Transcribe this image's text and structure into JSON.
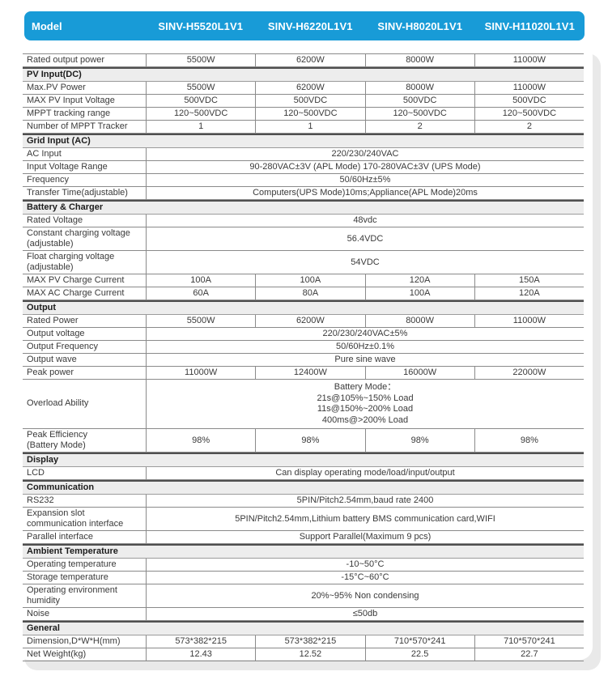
{
  "colors": {
    "accent_blue": "#189bd7",
    "section_bg": "#ededed",
    "border_gray": "#8a8a8a",
    "section_border_dark": "#4f4f4f",
    "shadow_gray": "#e9e9e9",
    "text_dark": "#3a3a3a"
  },
  "header": {
    "model_label": "Model",
    "models": [
      "SINV-H5520L1V1",
      "SINV-H6220L1V1",
      "SINV-H8020L1V1",
      "SINV-H11020L1V1"
    ]
  },
  "table": {
    "rows": [
      {
        "type": "cells",
        "label": "Rated output power",
        "values": [
          "5500W",
          "6200W",
          "8000W",
          "11000W"
        ]
      },
      {
        "type": "section",
        "label": "PV Input(DC)"
      },
      {
        "type": "cells",
        "label": "Max.PV Power",
        "values": [
          "5500W",
          "6200W",
          "8000W",
          "11000W"
        ]
      },
      {
        "type": "cells",
        "label": "MAX PV Input Voltage",
        "values": [
          "500VDC",
          "500VDC",
          "500VDC",
          "500VDC"
        ]
      },
      {
        "type": "cells",
        "label": "MPPT tracking range",
        "values": [
          "120~500VDC",
          "120~500VDC",
          "120~500VDC",
          "120~500VDC"
        ]
      },
      {
        "type": "cells",
        "label": "Number of MPPT Tracker",
        "values": [
          "1",
          "1",
          "2",
          "2"
        ]
      },
      {
        "type": "section",
        "label": "Grid Input (AC)"
      },
      {
        "type": "merged",
        "label": "AC Input",
        "value": "220/230/240VAC"
      },
      {
        "type": "merged",
        "label": "Input Voltage Range",
        "value": "90-280VAC±3V (APL Mode) 170-280VAC±3V (UPS Mode)"
      },
      {
        "type": "merged",
        "label": "Frequency",
        "value": "50/60Hz±5%"
      },
      {
        "type": "merged",
        "label": "Transfer Time(adjustable)",
        "value": "Computers(UPS Mode)10ms;Appliance(APL Mode)20ms"
      },
      {
        "type": "section",
        "label": "Battery & Charger"
      },
      {
        "type": "merged",
        "label": "Rated Voltage",
        "value": "48vdc"
      },
      {
        "type": "merged",
        "label": "Constant charging voltage\n(adjustable)",
        "value": "56.4VDC"
      },
      {
        "type": "merged",
        "label": "Float charging voltage\n(adjustable)",
        "value": "54VDC"
      },
      {
        "type": "cells",
        "label": "MAX PV Charge Current",
        "values": [
          "100A",
          "100A",
          "120A",
          "150A"
        ]
      },
      {
        "type": "cells",
        "label": "MAX AC Charge Current",
        "values": [
          "60A",
          "80A",
          "100A",
          "120A"
        ]
      },
      {
        "type": "section",
        "label": "Output"
      },
      {
        "type": "cells",
        "label": "Rated Power",
        "values": [
          "5500W",
          "6200W",
          "8000W",
          "11000W"
        ]
      },
      {
        "type": "merged",
        "label": "Output voltage",
        "value": "220/230/240VAC±5%"
      },
      {
        "type": "merged",
        "label": "Output Frequency",
        "value": "50/60Hz±0.1%"
      },
      {
        "type": "merged",
        "label": "Output wave",
        "value": "Pure sine wave"
      },
      {
        "type": "cells",
        "label": "Peak power",
        "values": [
          "11000W",
          "12400W",
          "16000W",
          "22000W"
        ]
      },
      {
        "type": "merged",
        "label": "Overload Ability",
        "value": "Battery Mode：\n21s@105%~150% Load\n11s@150%~200% Load\n400ms@>200% Load"
      },
      {
        "type": "cells",
        "label": "Peak Efficiency\n(Battery Mode)",
        "values": [
          "98%",
          "98%",
          "98%",
          "98%"
        ]
      },
      {
        "type": "section",
        "label": "Display"
      },
      {
        "type": "merged",
        "label": "LCD",
        "value": "Can display operating mode/load/input/output"
      },
      {
        "type": "section",
        "label": "Communication"
      },
      {
        "type": "merged",
        "label": "RS232",
        "value": "5PIN/Pitch2.54mm,baud rate 2400"
      },
      {
        "type": "merged",
        "label": "Expansion slot\ncommunication interface",
        "value": "5PIN/Pitch2.54mm,Lithium battery BMS communication card,WIFI"
      },
      {
        "type": "merged",
        "label": "Parallel interface",
        "value": "Support Parallel(Maximum 9 pcs)"
      },
      {
        "type": "section",
        "label": "Ambient Temperature"
      },
      {
        "type": "merged",
        "label": "Operating temperature",
        "value": "-10~50°C"
      },
      {
        "type": "merged",
        "label": "Storage temperature",
        "value": "-15°C~60°C"
      },
      {
        "type": "merged",
        "label": "Operating environment\nhumidity",
        "value": "20%~95% Non condensing"
      },
      {
        "type": "merged",
        "label": "Noise",
        "value": "≤50db"
      },
      {
        "type": "section",
        "label": "General"
      },
      {
        "type": "cells",
        "label": "Dimension,D*W*H(mm)",
        "values": [
          "573*382*215",
          "573*382*215",
          "710*570*241",
          "710*570*241"
        ]
      },
      {
        "type": "cells",
        "label": "Net Weight(kg)",
        "values": [
          "12.43",
          "12.52",
          "22.5",
          "22.7"
        ]
      }
    ]
  }
}
